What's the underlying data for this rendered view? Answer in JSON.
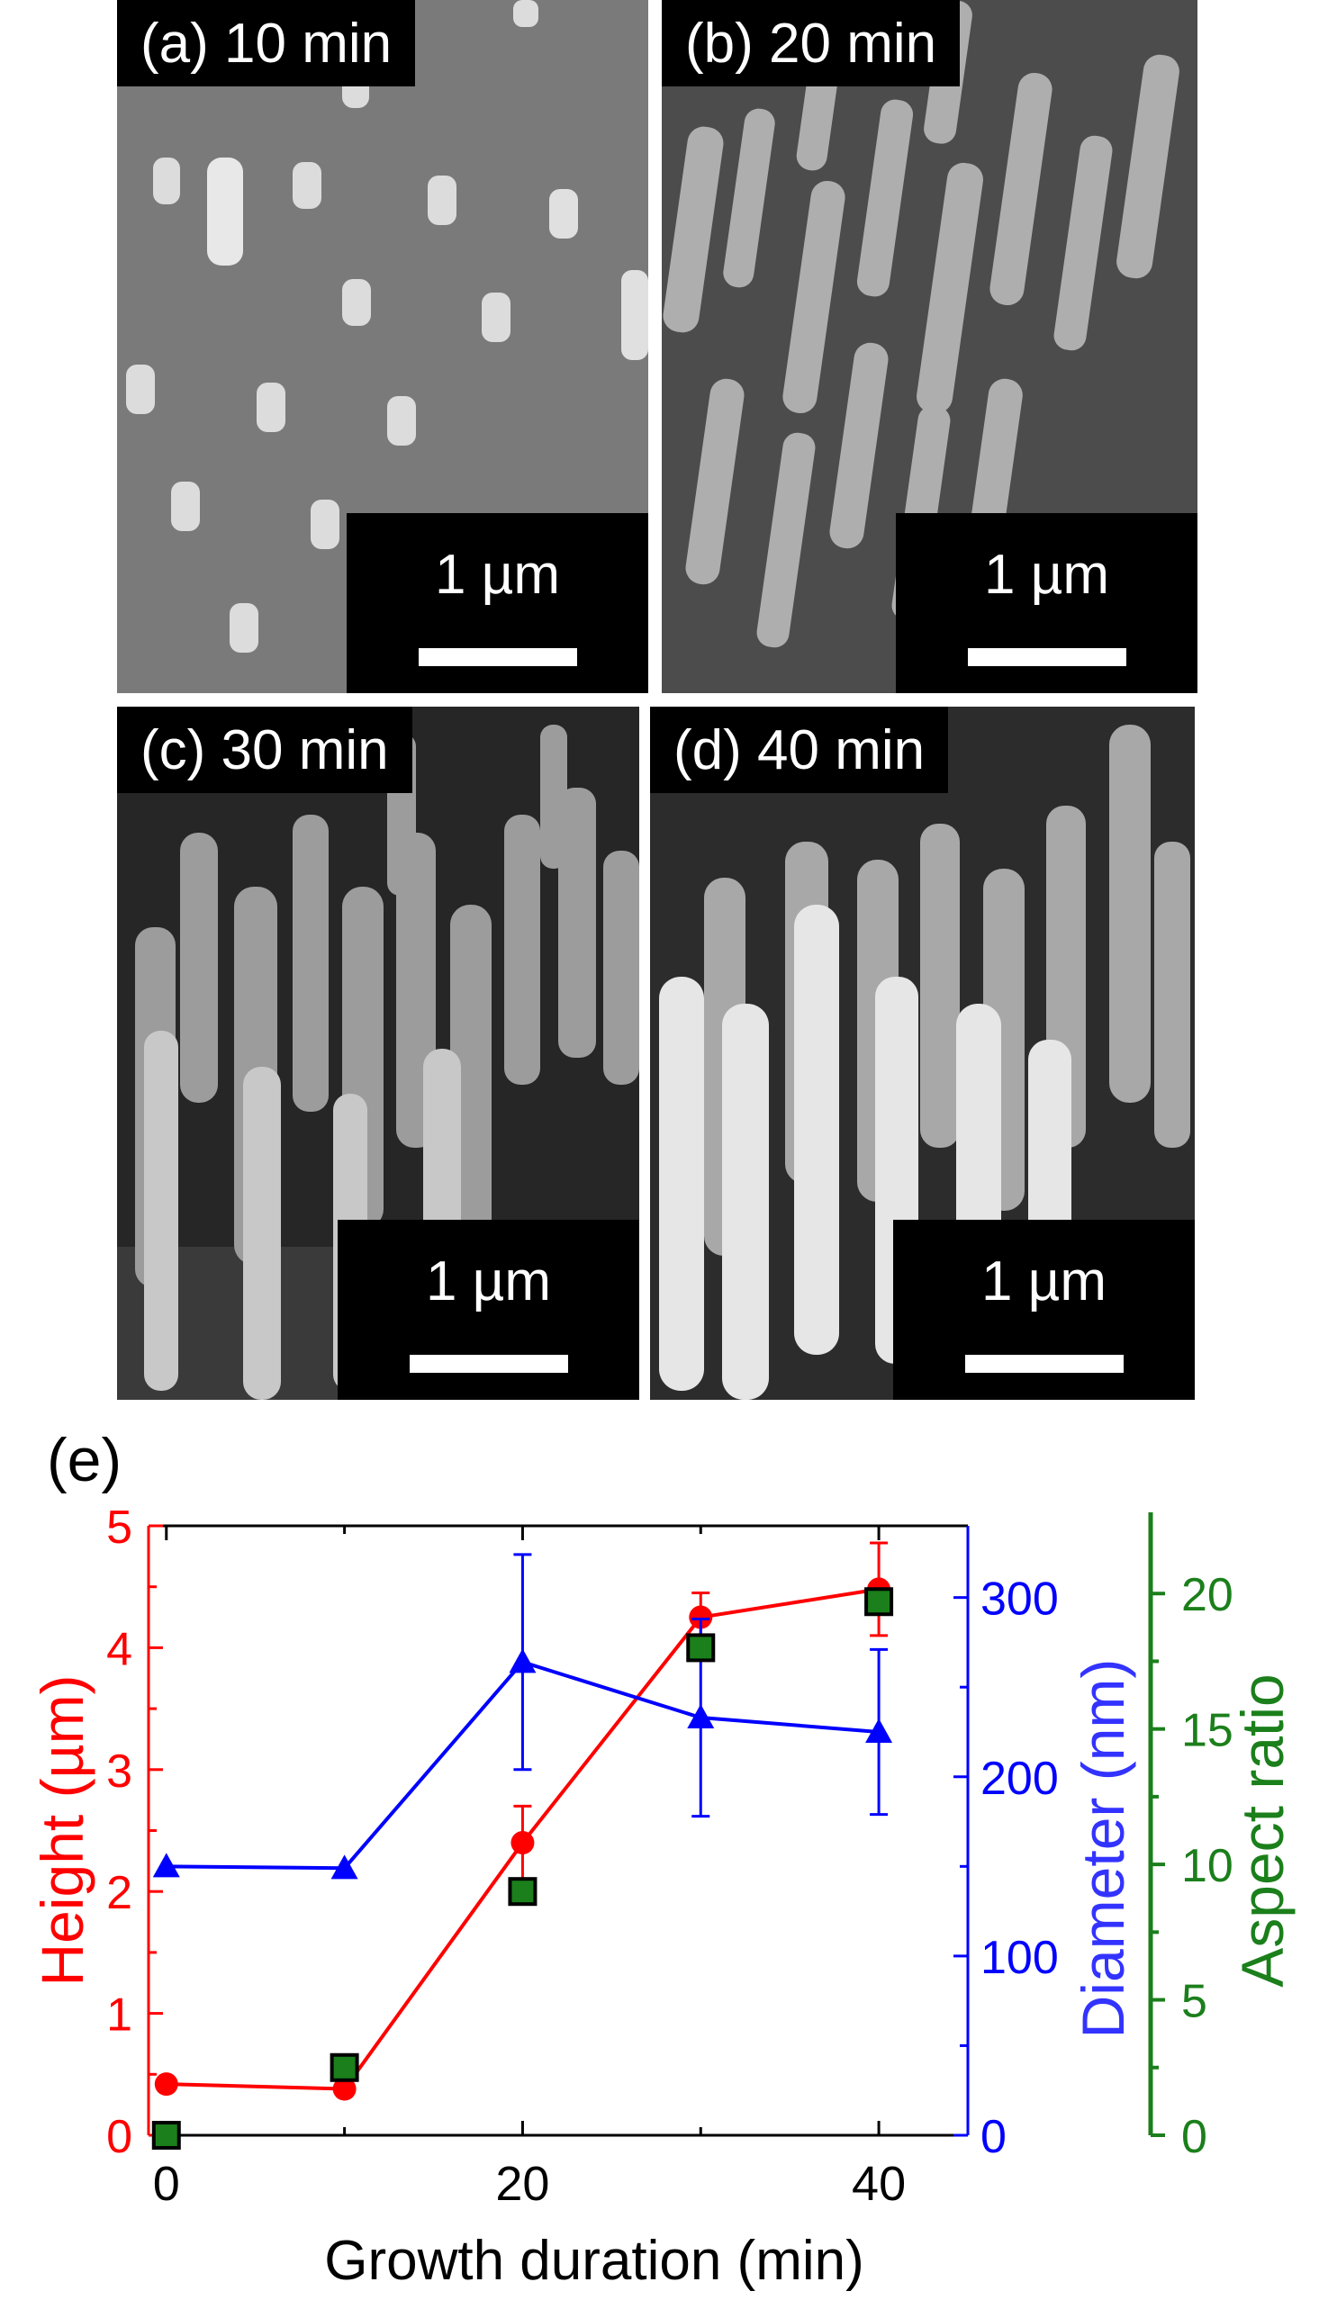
{
  "panels": [
    {
      "label": "(a) 10 min",
      "scale": "1 µm"
    },
    {
      "label": "(b) 20 min",
      "scale": "1 µm"
    },
    {
      "label": "(c) 30 min",
      "scale": "1 µm"
    },
    {
      "label": "(d) 40 min",
      "scale": "1 µm"
    }
  ],
  "chart_data": {
    "type": "line",
    "panel_label": "(e)",
    "xlabel": "Growth duration (min)",
    "x": [
      0,
      10,
      20,
      30,
      40
    ],
    "xlim": [
      -1,
      45
    ],
    "xticks": [
      0,
      20,
      40
    ],
    "grid": false,
    "series": [
      {
        "name": "Height (µm)",
        "axis": "left",
        "color": "#ff0000",
        "marker": "circle",
        "line": true,
        "values": [
          0.42,
          0.38,
          2.4,
          4.25,
          4.48
        ],
        "errors": [
          null,
          null,
          0.3,
          0.2,
          0.38
        ]
      },
      {
        "name": "Diameter (nm)",
        "axis": "right1",
        "color": "#0000ff",
        "marker": "triangle",
        "line": true,
        "values": [
          150,
          149,
          264,
          233,
          225
        ],
        "errors": [
          null,
          null,
          60,
          55,
          46
        ]
      },
      {
        "name": "Aspect ratio",
        "axis": "right2",
        "color": "#1b7f1b",
        "marker": "square",
        "line": false,
        "values": [
          0,
          2.5,
          9,
          18,
          19.7
        ],
        "errors": [
          null,
          null,
          null,
          null,
          null
        ]
      }
    ],
    "axes": {
      "left": {
        "label": "Height (µm)",
        "ylim": [
          0,
          5
        ],
        "ticks": [
          "0",
          "1",
          "2",
          "3",
          "4",
          "5"
        ],
        "color": "#ff0000"
      },
      "right1": {
        "label": "Diameter (nm)",
        "ylim": [
          0,
          340
        ],
        "ticks": [
          "0",
          "100",
          "200",
          "300"
        ],
        "color": "#0000ff"
      },
      "right2": {
        "label": "Aspect ratio",
        "ylim": [
          0,
          22.5
        ],
        "ticks": [
          "0",
          "5",
          "10",
          "15",
          "20"
        ],
        "color": "#1b7f1b"
      }
    }
  }
}
